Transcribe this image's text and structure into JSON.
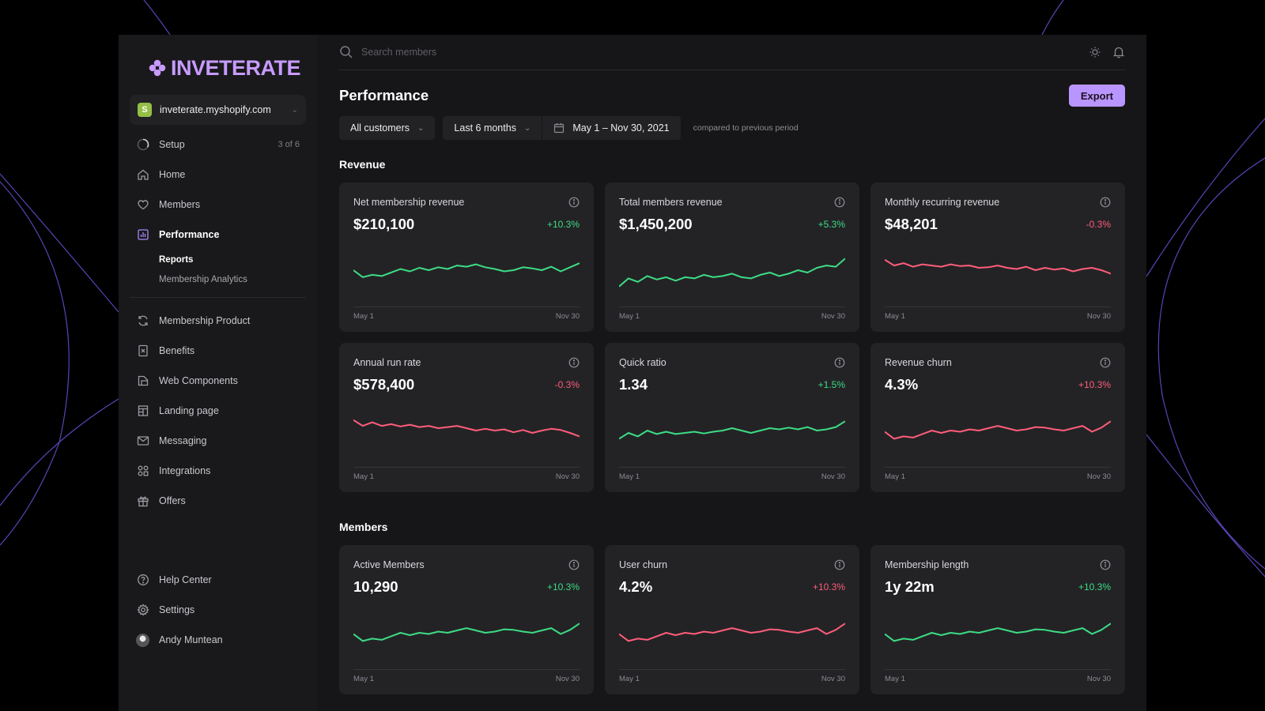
{
  "brand": {
    "name": "INVETERATE",
    "color": "#c79bff"
  },
  "store": {
    "name": "inveterate.myshopify.com",
    "icon": "shopify-icon"
  },
  "nav": {
    "setup": {
      "label": "Setup",
      "meta": "3 of 6",
      "icon": "progress-ring-icon"
    },
    "home": {
      "label": "Home",
      "icon": "home-icon"
    },
    "members": {
      "label": "Members",
      "icon": "heart-icon"
    },
    "performance": {
      "label": "Performance",
      "icon": "bar-chart-icon",
      "active": true
    },
    "sub": {
      "reports": "Reports",
      "analytics": "Membership Analytics"
    },
    "membership_product": {
      "label": "Membership Product",
      "icon": "refresh-icon"
    },
    "benefits": {
      "label": "Benefits",
      "icon": "benefits-icon"
    },
    "web_components": {
      "label": "Web Components",
      "icon": "components-icon"
    },
    "landing_page": {
      "label": "Landing page",
      "icon": "layout-icon"
    },
    "messaging": {
      "label": "Messaging",
      "icon": "mail-icon"
    },
    "integrations": {
      "label": "Integrations",
      "icon": "integrations-icon"
    },
    "offers": {
      "label": "Offers",
      "icon": "gift-icon"
    },
    "help": {
      "label": "Help Center",
      "icon": "help-icon"
    },
    "settings": {
      "label": "Settings",
      "icon": "gear-icon"
    },
    "user": {
      "label": "Andy Muntean",
      "icon": "avatar"
    }
  },
  "search": {
    "placeholder": "Search members"
  },
  "page": {
    "title": "Performance",
    "export_label": "Export"
  },
  "filters": {
    "customers": "All customers",
    "range": "Last 6 months",
    "dates": "May 1 – Nov 30, 2021",
    "compare_note": "compared to previous period"
  },
  "sections": {
    "revenue": "Revenue",
    "members": "Members"
  },
  "colors": {
    "up": "#3ddc84",
    "down": "#ff5d79",
    "accent": "#b996ff"
  },
  "cards": [
    {
      "label": "Net membership revenue",
      "value": "$210,100",
      "delta": "+10.3%",
      "trend": "up",
      "axis_start": "May 1",
      "axis_end": "Nov 30",
      "series": [
        50,
        38,
        42,
        40,
        46,
        52,
        48,
        54,
        50,
        55,
        52,
        58,
        56,
        60,
        55,
        52,
        48,
        50,
        55,
        53,
        50,
        56,
        48,
        55,
        62
      ]
    },
    {
      "label": "Total members revenue",
      "value": "$1,450,200",
      "delta": "+5.3%",
      "trend": "up",
      "axis_start": "May 1",
      "axis_end": "Nov 30",
      "series": [
        22,
        36,
        30,
        40,
        34,
        38,
        32,
        38,
        36,
        42,
        38,
        40,
        44,
        38,
        36,
        42,
        46,
        40,
        44,
        50,
        46,
        54,
        58,
        56,
        70
      ]
    },
    {
      "label": "Monthly recurring revenue",
      "value": "$48,201",
      "delta": "-0.3%",
      "trend": "down",
      "axis_start": "May 1",
      "axis_end": "Nov 30",
      "series": [
        68,
        58,
        62,
        56,
        60,
        58,
        56,
        60,
        57,
        58,
        54,
        55,
        58,
        54,
        52,
        56,
        50,
        54,
        51,
        53,
        48,
        52,
        54,
        50,
        44
      ]
    },
    {
      "label": "Annual run rate",
      "value": "$578,400",
      "delta": "-0.3%",
      "trend": "down",
      "axis_start": "May 1",
      "axis_end": "Nov 30",
      "series": [
        68,
        58,
        64,
        58,
        61,
        57,
        60,
        56,
        58,
        54,
        56,
        58,
        54,
        50,
        53,
        50,
        52,
        47,
        51,
        46,
        50,
        53,
        51,
        46,
        40
      ]
    },
    {
      "label": "Quick ratio",
      "value": "1.34",
      "delta": "+1.5%",
      "trend": "up",
      "axis_start": "May 1",
      "axis_end": "Nov 30",
      "series": [
        36,
        46,
        40,
        50,
        44,
        48,
        44,
        46,
        48,
        45,
        48,
        50,
        54,
        50,
        46,
        50,
        54,
        52,
        55,
        52,
        56,
        50,
        52,
        56,
        66
      ]
    },
    {
      "label": "Revenue churn",
      "value": "4.3%",
      "delta": "+10.3%",
      "trend": "down",
      "axis_start": "May 1",
      "axis_end": "Nov 30",
      "series": [
        48,
        36,
        40,
        38,
        44,
        50,
        46,
        50,
        48,
        52,
        50,
        54,
        58,
        54,
        50,
        52,
        56,
        55,
        52,
        50,
        54,
        58,
        48,
        55,
        66
      ]
    },
    {
      "label": "Active Members",
      "value": "10,290",
      "delta": "+10.3%",
      "trend": "up",
      "axis_start": "May 1",
      "axis_end": "Nov 30",
      "series": [
        48,
        36,
        40,
        38,
        44,
        50,
        46,
        50,
        48,
        52,
        50,
        54,
        58,
        54,
        50,
        52,
        56,
        55,
        52,
        50,
        54,
        58,
        48,
        55,
        66
      ]
    },
    {
      "label": "User churn",
      "value": "4.2%",
      "delta": "+10.3%",
      "trend": "down",
      "axis_start": "May 1",
      "axis_end": "Nov 30",
      "series": [
        48,
        36,
        40,
        38,
        44,
        50,
        46,
        50,
        48,
        52,
        50,
        54,
        58,
        54,
        50,
        52,
        56,
        55,
        52,
        50,
        54,
        58,
        48,
        55,
        66
      ]
    },
    {
      "label": "Membership length",
      "value": "1y 22m",
      "delta": "+10.3%",
      "trend": "up",
      "axis_start": "May 1",
      "axis_end": "Nov 30",
      "series": [
        48,
        36,
        40,
        38,
        44,
        50,
        46,
        50,
        48,
        52,
        50,
        54,
        58,
        54,
        50,
        52,
        56,
        55,
        52,
        50,
        54,
        58,
        48,
        55,
        66
      ]
    }
  ]
}
